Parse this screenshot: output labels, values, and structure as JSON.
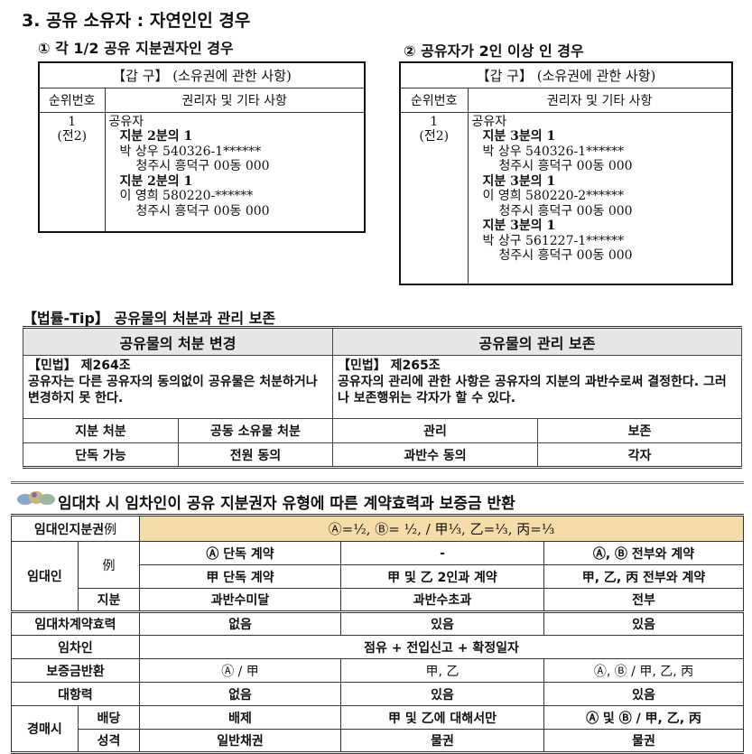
{
  "title": "3. 공유 소유자 : 자연인인 경우",
  "case1": {
    "heading": "① 각 1/2 공유 지분권자인 경우",
    "table_title": "【갑 구】 (소유권에 관한 사항)",
    "col1": "순위번호",
    "col2": "권리자 및 기타 사항",
    "rank": "1",
    "rank_sub": "(전2)",
    "owner_label": "공유자",
    "owners": [
      {
        "share": "지분 2분의 1",
        "name": "박 상우 540326-1******",
        "address": "청주시 흥덕구 00동 000"
      },
      {
        "share": "지분 2분의 1",
        "name": "이 영희 580220-******",
        "address": "청주시 흥덕구 00동 000"
      }
    ]
  },
  "case2": {
    "heading": "② 공유자가 2인 이상 인 경우",
    "table_title": "【갑 구】 (소유권에 관한 사항)",
    "col1": "순위번호",
    "col2": "권리자 및 기타 사항",
    "rank": "1",
    "rank_sub": "(전2)",
    "owner_label": "공유자",
    "owners": [
      {
        "share": "지분 3분의 1",
        "name": "박 상우 540326-1******",
        "address": "청주시 흥덕구 00동 000"
      },
      {
        "share": "지분 3분의 1",
        "name": "이 영희 580220-2******",
        "address": "청주시 흥덕구 00동 000"
      },
      {
        "share": "지분 3분의 1",
        "name": "박 상구 561227-1******",
        "address": "청주시 흥덕구 00동 000"
      }
    ]
  },
  "tip": {
    "heading": "【법률-Tip】 공유물의 처분과 관리 보존",
    "left_header": "공유물의 처분 변경",
    "right_header": "공유물의 관리 보존",
    "left_law": "【민법】 제264조",
    "left_text": "공유자는 다른 공유자의 동의없이 공유물은 처분하거나 변경하지 못 한다.",
    "right_law": "【민법】 제265조",
    "right_text": "공유자의 관리에 관한 사항은 공유자의 지분의 과반수로써 결정한다. 그러나 보존행위는 각자가 할 수 있다.",
    "row1": [
      "지분 처분",
      "공동 소유물 처분",
      "관리",
      "보존"
    ],
    "row2": [
      "단독 가능",
      "전원 동의",
      "과반수 동의",
      "각자"
    ]
  },
  "lease": {
    "heading": "임대차 시 임차인이 공유 지분권자 유형에 따른 계약효력과 보증금 반환",
    "highlight_color": "#f6dca8",
    "share_label": "임대인지분권",
    "share_example": "例",
    "share_value": "Ⓐ=½,  Ⓑ= ½, / 甲⅓,  乙=⅓,  丙=⅓",
    "lessor_label": "임대인",
    "example_label": "例",
    "ex_row1": [
      "Ⓐ 단독 계약",
      "-",
      "Ⓐ, Ⓑ 전부와 계약"
    ],
    "ex_row2": [
      "甲 단독 계약",
      "甲 및 乙 2인과 계약",
      "甲, 乙, 丙 전부와 계약"
    ],
    "share_row_label": "지분",
    "share_row": [
      "과반수미달",
      "과반수초과",
      "전부"
    ],
    "effect_label": "임대차계약효력",
    "effect": [
      "없음",
      "있음",
      "있음"
    ],
    "tenant_label": "임차인",
    "tenant": "점유 + 전입신고 + 확정일자",
    "deposit_label": "보증금반환",
    "deposit": [
      "Ⓐ / 甲",
      "甲, 乙",
      "Ⓐ, Ⓑ / 甲, 乙, 丙"
    ],
    "opposing_label": "대항력",
    "opposing": [
      "없음",
      "있음",
      "있음"
    ],
    "auction_label": "경매시",
    "dividend_label": "배당",
    "dividend": [
      "배제",
      "甲 및 乙에 대해서만",
      "Ⓐ 및 Ⓑ / 甲, 乙, 丙"
    ],
    "nature_label": "성격",
    "nature": [
      "일반채권",
      "물권",
      "물권"
    ]
  }
}
